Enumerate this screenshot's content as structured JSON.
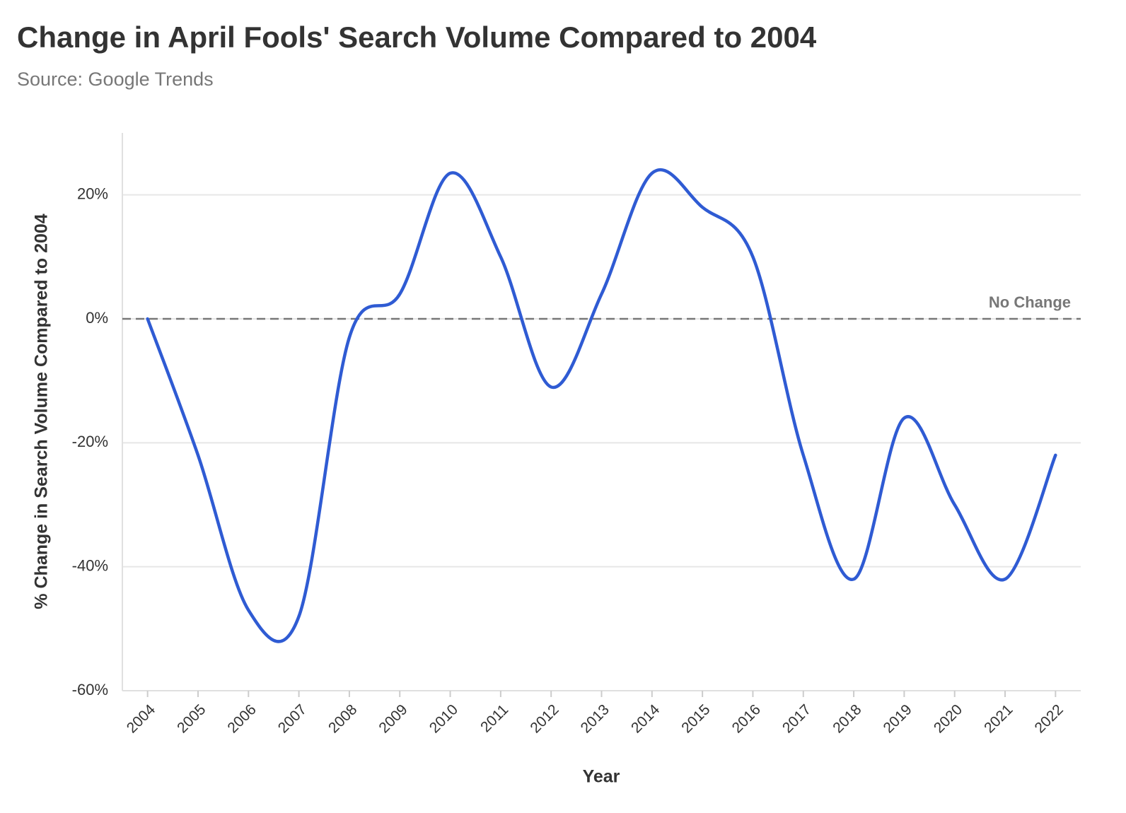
{
  "chart_data": {
    "type": "line",
    "title": "Change in April Fools' Search Volume Compared to 2004",
    "subtitle": "Source: Google Trends",
    "x_label": "Year",
    "y_label": "% Change in Search Volume Compared to 2004",
    "x": [
      2004,
      2005,
      2006,
      2007,
      2008,
      2009,
      2010,
      2011,
      2012,
      2013,
      2014,
      2015,
      2016,
      2017,
      2018,
      2019,
      2020,
      2021,
      2022
    ],
    "values": [
      0,
      -22,
      -47,
      -48,
      -3,
      4,
      23.5,
      10,
      -11,
      4,
      23.5,
      18,
      10,
      -22,
      -42,
      -16,
      -30,
      -42,
      -22
    ],
    "color": "#2f5bd3",
    "xlim": [
      2003.5,
      2022.5
    ],
    "xticks": [
      2004,
      2005,
      2006,
      2007,
      2008,
      2009,
      2010,
      2011,
      2012,
      2013,
      2014,
      2015,
      2016,
      2017,
      2018,
      2019,
      2020,
      2021,
      2022
    ],
    "ylim": [
      -60,
      30
    ],
    "yticks": [
      {
        "value": -60,
        "label": "-60%"
      },
      {
        "value": -40,
        "label": "-40%"
      },
      {
        "value": -20,
        "label": "-20%"
      },
      {
        "value": 0,
        "label": "0%"
      },
      {
        "value": 20,
        "label": "20%"
      }
    ],
    "grid": true,
    "reference_line": {
      "value": 0,
      "label": "No Change"
    }
  }
}
